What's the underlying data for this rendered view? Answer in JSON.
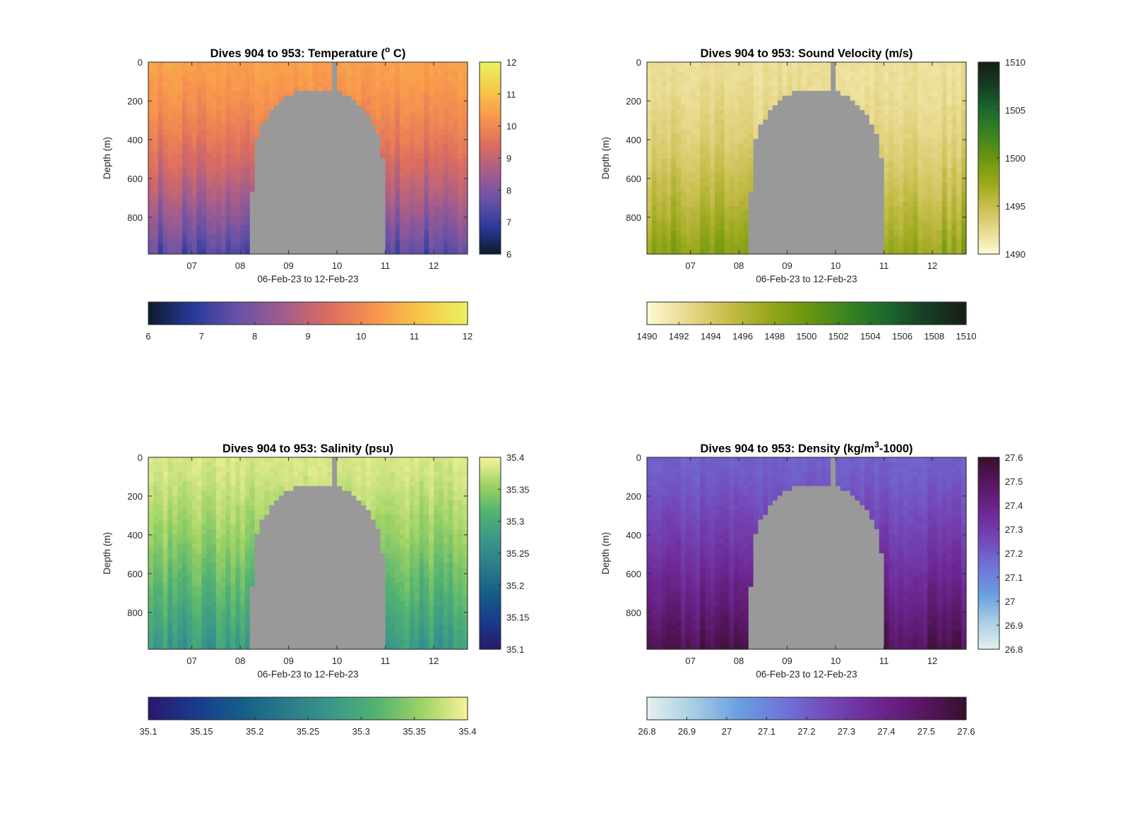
{
  "figure": {
    "background": "#ffffff",
    "mask_color": "#999999"
  },
  "chart_data": [
    {
      "type": "heatmap",
      "title": "Dives 904 to 953: Temperature (",
      "title_sup": "o",
      "title_suffix": " C)",
      "xlabel": "06-Feb-23 to 12-Feb-23",
      "ylabel": "Depth (m)",
      "x_ticks": [
        "07",
        "08",
        "09",
        "10",
        "11",
        "12"
      ],
      "xlim": [
        6.1,
        12.7
      ],
      "y_ticks": [
        "0",
        "200",
        "400",
        "600",
        "800"
      ],
      "ylim": [
        0,
        990
      ],
      "y_reversed": true,
      "colormap": "thermal",
      "colormap_stops": [
        "#0d1a2b",
        "#2a3a9a",
        "#6a52a6",
        "#a45d8c",
        "#dc6e5f",
        "#f8964d",
        "#f6c84a",
        "#e9f25f"
      ],
      "clim": [
        6,
        12
      ],
      "colorbar_side_ticks": [
        "6",
        "7",
        "8",
        "9",
        "10",
        "11",
        "12"
      ],
      "colorbar_bottom_ticks": [
        "6",
        "7",
        "8",
        "9",
        "10",
        "11",
        "12"
      ],
      "field": {
        "surface": 10.45,
        "bottom": 7.4,
        "mid_bias": 0.35
      },
      "mask_profile": {
        "left_day": [
          8.2,
          8.35
        ],
        "right_day": [
          11.05,
          10.85
        ],
        "top_depth": 150,
        "spike_day": 9.95
      }
    },
    {
      "type": "heatmap",
      "title": "Dives 904 to 953: Sound Velocity (m/s)",
      "title_sup": "",
      "title_suffix": "",
      "xlabel": "06-Feb-23 to 12-Feb-23",
      "ylabel": "Depth (m)",
      "x_ticks": [
        "07",
        "08",
        "09",
        "10",
        "11",
        "12"
      ],
      "xlim": [
        6.1,
        12.7
      ],
      "y_ticks": [
        "0",
        "200",
        "400",
        "600",
        "800"
      ],
      "ylim": [
        0,
        990
      ],
      "y_reversed": true,
      "colormap": "speed",
      "colormap_stops": [
        "#fefbd3",
        "#e8d98e",
        "#c8be4e",
        "#9aa81b",
        "#6b9610",
        "#3c8420",
        "#1b6a2d",
        "#173d24",
        "#171f16"
      ],
      "clim": [
        1490,
        1510
      ],
      "colorbar_side_ticks": [
        "1490",
        "1495",
        "1500",
        "1505",
        "1510"
      ],
      "colorbar_bottom_ticks": [
        "1490",
        "1492",
        "1494",
        "1496",
        "1498",
        "1500",
        "1502",
        "1504",
        "1506",
        "1508",
        "1510"
      ],
      "field": {
        "surface": 1492.2,
        "bottom": 1498.3,
        "mid_bias": -0.6
      },
      "mask_profile": {
        "left_day": [
          8.2,
          8.35
        ],
        "right_day": [
          11.05,
          10.85
        ],
        "top_depth": 150,
        "spike_day": 9.95
      }
    },
    {
      "type": "heatmap",
      "title": "Dives 904 to 953: Salinity (psu)",
      "title_sup": "",
      "title_suffix": "",
      "xlabel": "06-Feb-23 to 12-Feb-23",
      "ylabel": "Depth (m)",
      "x_ticks": [
        "07",
        "08",
        "09",
        "10",
        "11",
        "12"
      ],
      "xlim": [
        6.1,
        12.7
      ],
      "y_ticks": [
        "0",
        "200",
        "400",
        "600",
        "800"
      ],
      "ylim": [
        0,
        990
      ],
      "y_reversed": true,
      "colormap": "haline",
      "colormap_stops": [
        "#2a186c",
        "#1a3a8c",
        "#145c89",
        "#2a7a8a",
        "#3a978a",
        "#52b271",
        "#9ed365",
        "#f8f29b"
      ],
      "clim": [
        35.1,
        35.4
      ],
      "colorbar_side_ticks": [
        "35.1",
        "35.15",
        "35.2",
        "35.25",
        "35.3",
        "35.35",
        "35.4"
      ],
      "colorbar_bottom_ticks": [
        "35.1",
        "35.15",
        "35.2",
        "35.25",
        "35.3",
        "35.35",
        "35.4"
      ],
      "field": {
        "surface": 35.385,
        "bottom": 35.275,
        "mid_bias": 0.01
      },
      "mask_profile": {
        "left_day": [
          8.2,
          8.35
        ],
        "right_day": [
          11.05,
          10.85
        ],
        "top_depth": 150,
        "spike_day": 9.95
      }
    },
    {
      "type": "heatmap",
      "title": "Dives 904 to 953: Density (kg/m",
      "title_sup": "3",
      "title_suffix": "-1000)",
      "xlabel": "06-Feb-23 to 12-Feb-23",
      "ylabel": "Depth (m)",
      "x_ticks": [
        "07",
        "08",
        "09",
        "10",
        "11",
        "12"
      ],
      "xlim": [
        6.1,
        12.7
      ],
      "y_ticks": [
        "0",
        "200",
        "400",
        "600",
        "800"
      ],
      "ylim": [
        0,
        990
      ],
      "y_reversed": true,
      "colormap": "dense",
      "colormap_stops": [
        "#e6f0f0",
        "#a8cfe4",
        "#6a9fe0",
        "#6f74d8",
        "#7448b8",
        "#6e2894",
        "#5a1766",
        "#36102c"
      ],
      "clim": [
        26.8,
        27.6
      ],
      "colorbar_side_ticks": [
        "26.8",
        "26.9",
        "27",
        "27.1",
        "27.2",
        "27.3",
        "27.4",
        "27.5",
        "27.6"
      ],
      "colorbar_bottom_ticks": [
        "26.8",
        "26.9",
        "27",
        "27.1",
        "27.2",
        "27.3",
        "27.4",
        "27.5",
        "27.6"
      ],
      "field": {
        "surface": 27.19,
        "bottom": 27.52,
        "mid_bias": -0.02
      },
      "mask_profile": {
        "left_day": [
          8.2,
          8.35
        ],
        "right_day": [
          11.05,
          10.85
        ],
        "top_depth": 150,
        "spike_day": 9.95
      }
    }
  ]
}
